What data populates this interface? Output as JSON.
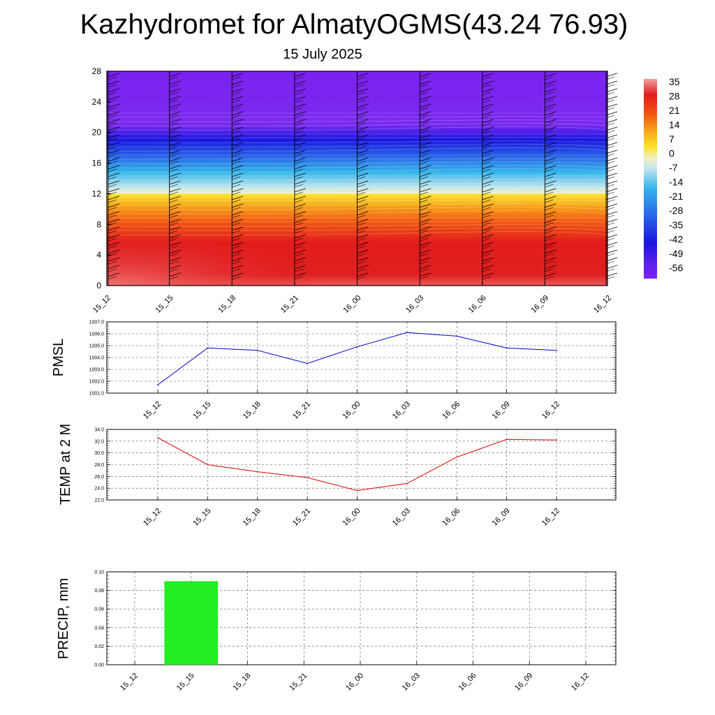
{
  "title": "Kazhydromet for AlmatyOGMS(43.24 76.93)",
  "subtitle": "15 July 2025",
  "colorbar_labels": [
    "35",
    "28",
    "21",
    "14",
    "7",
    "0",
    "-7",
    "-14",
    "-21",
    "-28",
    "-35",
    "-42",
    "-49",
    "-56"
  ],
  "colors": {
    "pmsl_line": "#0000cc",
    "temp_line": "#dd0000",
    "precip_bar": "#22ee22"
  },
  "chart_data": [
    {
      "type": "heatmap",
      "name": "temperature-profile",
      "title": "",
      "xlabel": "",
      "ylabel": "",
      "x_ticks": [
        "15_12",
        "15_15",
        "15_18",
        "15_21",
        "16_00",
        "16_03",
        "16_06",
        "16_09",
        "16_12"
      ],
      "y_ticks": [
        "0",
        "4",
        "8",
        "12",
        "16",
        "20",
        "24",
        "28"
      ],
      "ylim": [
        0,
        28
      ],
      "color_range": [
        -60,
        38
      ],
      "grid": false,
      "legend": "right"
    },
    {
      "type": "line",
      "name": "pmsl",
      "ylabel": "PMSL",
      "categories": [
        "15_12",
        "15_15",
        "15_18",
        "15_21",
        "16_00",
        "16_03",
        "16_06",
        "16_09",
        "16_12"
      ],
      "values": [
        1001.7,
        1004.8,
        1004.6,
        1003.5,
        1004.9,
        1006.1,
        1005.8,
        1004.8,
        1004.6
      ],
      "ylim": [
        1001.0,
        1007.0
      ],
      "y_ticks": [
        "1007.0",
        "1006.0",
        "1005.0",
        "1004.0",
        "1003.0",
        "1002.0",
        "1001.0"
      ],
      "grid": true
    },
    {
      "type": "line",
      "name": "temp-2m",
      "ylabel": "TEMP at 2 M",
      "categories": [
        "15_12",
        "15_15",
        "15_18",
        "15_21",
        "16_00",
        "16_03",
        "16_06",
        "16_09",
        "16_12"
      ],
      "values": [
        32.6,
        28.0,
        26.8,
        25.8,
        23.6,
        24.8,
        29.3,
        32.3,
        32.2
      ],
      "ylim": [
        22.0,
        34.0
      ],
      "y_ticks": [
        "34.0",
        "32.0",
        "30.0",
        "28.0",
        "26.0",
        "24.0",
        "22.0"
      ],
      "grid": true
    },
    {
      "type": "bar",
      "name": "precip",
      "ylabel": "PRECIP, mm",
      "categories": [
        "15_12",
        "15_15",
        "15_18",
        "15_21",
        "16_00",
        "16_03",
        "16_06",
        "16_09",
        "16_12"
      ],
      "values": [
        0,
        0.09,
        0,
        0,
        0,
        0,
        0,
        0,
        0
      ],
      "ylim": [
        0,
        0.1
      ],
      "y_ticks": [
        "0.10",
        "0.08",
        "0.06",
        "0.04",
        "0.02",
        "0.00"
      ],
      "grid": true
    }
  ]
}
